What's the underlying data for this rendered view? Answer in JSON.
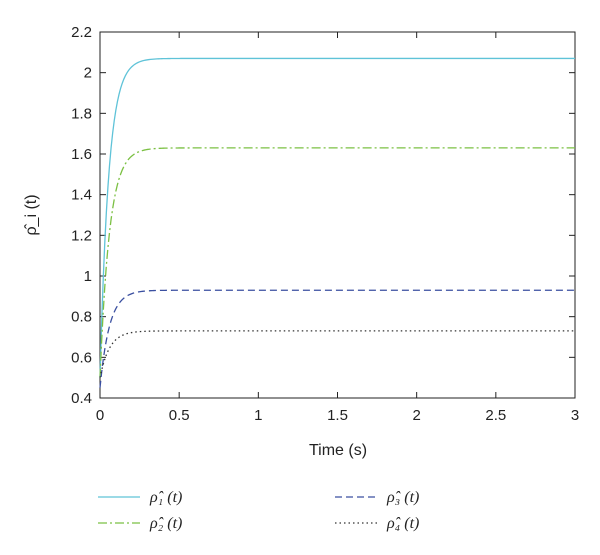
{
  "chart_data": {
    "type": "line",
    "xlabel": "Time (s)",
    "ylabel": "ρ̂_i (t)",
    "xlim": [
      0,
      3
    ],
    "ylim": [
      0.4,
      2.2
    ],
    "xticks": [
      0,
      0.5,
      1,
      1.5,
      2,
      2.5,
      3
    ],
    "xtick_labels": [
      "0",
      "0.5",
      "1",
      "1.5",
      "2",
      "2.5",
      "3"
    ],
    "yticks": [
      0.4,
      0.6,
      0.8,
      1.0,
      1.2,
      1.4,
      1.6,
      1.8,
      2.0,
      2.2
    ],
    "ytick_labels": [
      "0.4",
      "0.6",
      "0.8",
      "1",
      "1.2",
      "1.4",
      "1.6",
      "1.8",
      "2",
      "2.2"
    ],
    "grid": false,
    "legend_placement": "bottom",
    "series": [
      {
        "name": "ρ̂₁ (t)",
        "color": "#5fc3d8",
        "style": "solid",
        "start": 0.5,
        "final": 2.07,
        "tau": 0.055
      },
      {
        "name": "ρ̂₂ (t)",
        "color": "#7bc043",
        "style": "dashdot",
        "start": 0.5,
        "final": 1.63,
        "tau": 0.06
      },
      {
        "name": "ρ̂₃ (t)",
        "color": "#3a4fa0",
        "style": "dashed",
        "start": 0.45,
        "final": 0.93,
        "tau": 0.06
      },
      {
        "name": "ρ̂₄ (t)",
        "color": "#333333",
        "style": "dotted",
        "start": 0.5,
        "final": 0.73,
        "tau": 0.06
      }
    ]
  }
}
